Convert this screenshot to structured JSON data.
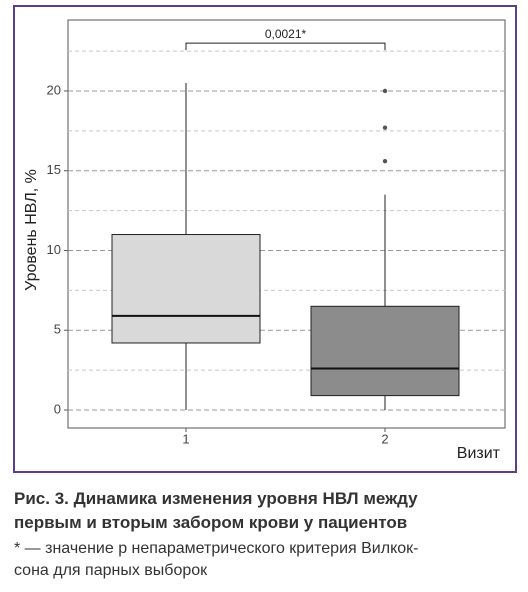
{
  "chart_data": {
    "type": "box",
    "y_label": "Уровень НВЛ, %",
    "x_label": "Визит",
    "categories": [
      "1",
      "2"
    ],
    "boxes": [
      {
        "color": "#d9d9d9",
        "min": 0,
        "q1": 4.2,
        "median": 5.9,
        "q3": 11,
        "max": 20.5,
        "outliers": []
      },
      {
        "color": "#8c8c8c",
        "min": 0,
        "q1": 0.9,
        "median": 2.6,
        "q3": 6.5,
        "max": 13.5,
        "outliers": [
          15.6,
          17.7,
          20
        ]
      }
    ],
    "ylim": [
      -1.13,
      24.45
    ],
    "yticks": [
      0,
      5,
      10,
      15,
      20
    ],
    "minor_yticks": [
      2.5,
      7.5,
      12.5,
      17.5,
      22.5
    ],
    "grid": true,
    "annotation": {
      "text": "0,0021*",
      "y": 23
    }
  },
  "caption": {
    "title_lines": [
      "Рис. 3. Динамика изменения уровня НВЛ между",
      "первым и вторым забором крови у пациентов"
    ],
    "note_lines": [
      "* — значение p непараметрического критерия Вилкок-",
      "сона для парных выборок"
    ]
  }
}
